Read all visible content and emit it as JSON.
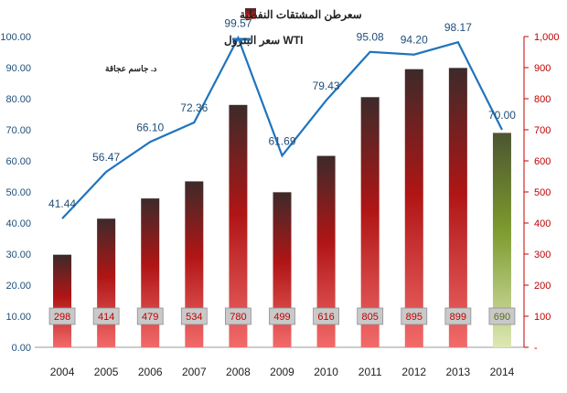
{
  "chart_data": {
    "type": "bar+line",
    "categories": [
      "2004",
      "2005",
      "2006",
      "2007",
      "2008",
      "2009",
      "2010",
      "2011",
      "2012",
      "2013",
      "2014"
    ],
    "series": [
      {
        "name": "سعرطن المشتقات النفطية",
        "axis": "right",
        "kind": "bar",
        "values": [
          298,
          414,
          479,
          534,
          780,
          499,
          616,
          805,
          895,
          899,
          690
        ],
        "labels": [
          "298",
          "414",
          "479",
          "534",
          "780",
          "499",
          "616",
          "805",
          "895",
          "899",
          "690"
        ]
      },
      {
        "name": "WTI سعر البترول",
        "axis": "left",
        "kind": "line",
        "values": [
          41.44,
          56.47,
          66.1,
          72.36,
          99.57,
          61.69,
          79.43,
          95.08,
          94.2,
          98.17,
          70.0
        ],
        "labels": [
          "41.44",
          "56.47",
          "66.10",
          "72.36",
          "99.57",
          "61.69",
          "79.43",
          "95.08",
          "94.20",
          "98.17",
          "70.00"
        ]
      }
    ],
    "left_axis": {
      "ylim": [
        0,
        100
      ],
      "ticks": [
        "0.00",
        "10.00",
        "20.00",
        "30.00",
        "40.00",
        "50.00",
        "60.00",
        "70.00",
        "80.00",
        "90.00",
        "100.00"
      ]
    },
    "right_axis": {
      "ylim": [
        0,
        1000
      ],
      "ticks": [
        "-",
        "100",
        "200",
        "300",
        "400",
        "500",
        "600",
        "700",
        "800",
        "900",
        "1,000"
      ]
    },
    "legend": {
      "bar_label": "سعرطن المشتقات النفطية",
      "line_label": "WTI سعر البترول",
      "placement": "top-left",
      "author": "د. جاسم عجاقة"
    },
    "colors": {
      "bar_top": "#3d2a2a",
      "bar_mid": "#b01515",
      "bar_bottom": "#f26a6a",
      "bar_last_top": "#4c5530",
      "bar_last_mid": "#7c9a2e",
      "bar_last_bottom": "#dde8b4",
      "line": "#1f74bd",
      "right_axis": "#c00000",
      "left_axis": "#1f74bd",
      "label_box": "#c9c9c9",
      "label_text": "#c00000"
    }
  }
}
